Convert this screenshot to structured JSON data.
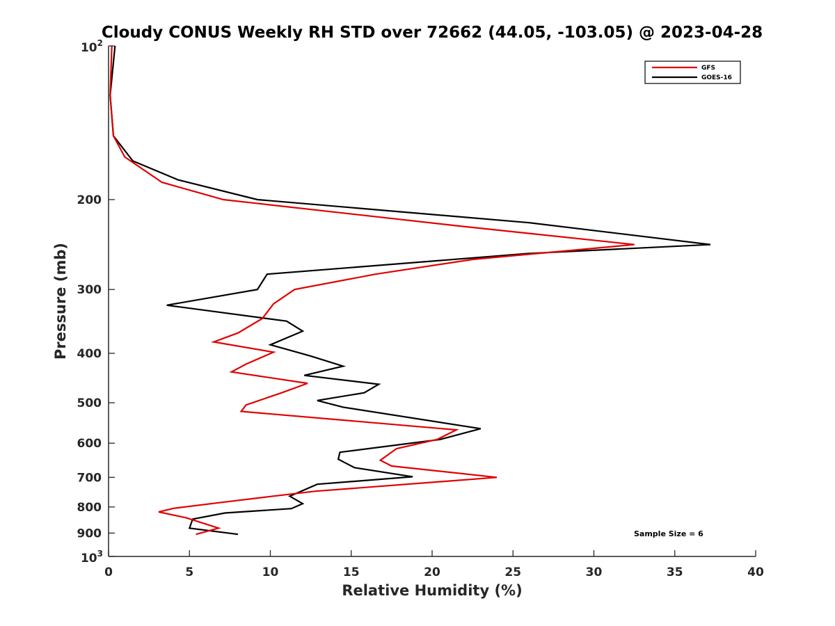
{
  "chart_data": {
    "type": "line",
    "title": "Cloudy CONUS Weekly RH STD over 72662 (44.05, -103.05) @ 2023-04-28",
    "xlabel": "Relative Humidity (%)",
    "ylabel": "Pressure (mb)",
    "xlim": [
      0,
      40
    ],
    "ylim": [
      100,
      1000
    ],
    "y_scale": "log",
    "y_reversed": true,
    "x_ticks": [
      "0",
      "5",
      "10",
      "15",
      "20",
      "25",
      "30",
      "35",
      "40"
    ],
    "y_ticks": [
      {
        "value": 100,
        "base": "10",
        "exp": "2"
      },
      {
        "value": 200,
        "label": "200"
      },
      {
        "value": 300,
        "label": "300"
      },
      {
        "value": 400,
        "label": "400"
      },
      {
        "value": 500,
        "label": "500"
      },
      {
        "value": 600,
        "label": "600"
      },
      {
        "value": 700,
        "label": "700"
      },
      {
        "value": 800,
        "label": "800"
      },
      {
        "value": 900,
        "label": "900"
      },
      {
        "value": 1000,
        "base": "10",
        "exp": "3"
      }
    ],
    "grid": false,
    "legend_position": "top-right",
    "annotation": "Sample Size = 6",
    "series": [
      {
        "name": "GFS",
        "color": "#e00000",
        "points": [
          [
            0.2,
            100
          ],
          [
            0.1,
            125
          ],
          [
            0.3,
            150
          ],
          [
            1.0,
            165
          ],
          [
            3.3,
            185
          ],
          [
            7.1,
            200
          ],
          [
            21.5,
            225
          ],
          [
            32.5,
            245
          ],
          [
            22.5,
            262
          ],
          [
            16.5,
            280
          ],
          [
            11.5,
            300
          ],
          [
            10.2,
            320
          ],
          [
            9.5,
            342
          ],
          [
            8.0,
            365
          ],
          [
            6.5,
            380
          ],
          [
            10.2,
            398
          ],
          [
            8.5,
            420
          ],
          [
            7.6,
            435
          ],
          [
            12.3,
            458
          ],
          [
            10.7,
            478
          ],
          [
            8.5,
            505
          ],
          [
            8.2,
            520
          ],
          [
            21.5,
            565
          ],
          [
            20.3,
            590
          ],
          [
            17.8,
            615
          ],
          [
            16.8,
            648
          ],
          [
            17.5,
            665
          ],
          [
            24.0,
            700
          ],
          [
            12.8,
            745
          ],
          [
            10.0,
            763
          ],
          [
            6.8,
            785
          ],
          [
            4.0,
            805
          ],
          [
            3.1,
            818
          ],
          [
            4.8,
            840
          ],
          [
            6.8,
            880
          ],
          [
            5.4,
            905
          ]
        ]
      },
      {
        "name": "GOES-16",
        "color": "#000000",
        "points": [
          [
            0.4,
            100
          ],
          [
            0.1,
            125
          ],
          [
            0.3,
            150
          ],
          [
            1.5,
            168
          ],
          [
            4.3,
            183
          ],
          [
            9.2,
            200
          ],
          [
            26.0,
            222
          ],
          [
            37.2,
            245
          ],
          [
            26.0,
            255
          ],
          [
            9.8,
            280
          ],
          [
            9.2,
            300
          ],
          [
            3.6,
            322
          ],
          [
            11.0,
            346
          ],
          [
            12.0,
            362
          ],
          [
            10.0,
            385
          ],
          [
            12.5,
            405
          ],
          [
            14.5,
            424
          ],
          [
            12.1,
            442
          ],
          [
            16.7,
            460
          ],
          [
            15.8,
            478
          ],
          [
            12.9,
            495
          ],
          [
            14.5,
            510
          ],
          [
            23.0,
            562
          ],
          [
            20.5,
            590
          ],
          [
            14.3,
            625
          ],
          [
            14.2,
            645
          ],
          [
            15.2,
            670
          ],
          [
            18.8,
            698
          ],
          [
            12.9,
            722
          ],
          [
            11.2,
            762
          ],
          [
            12.0,
            788
          ],
          [
            11.3,
            806
          ],
          [
            7.2,
            822
          ],
          [
            5.2,
            845
          ],
          [
            5.0,
            880
          ],
          [
            8.0,
            905
          ]
        ]
      }
    ]
  }
}
